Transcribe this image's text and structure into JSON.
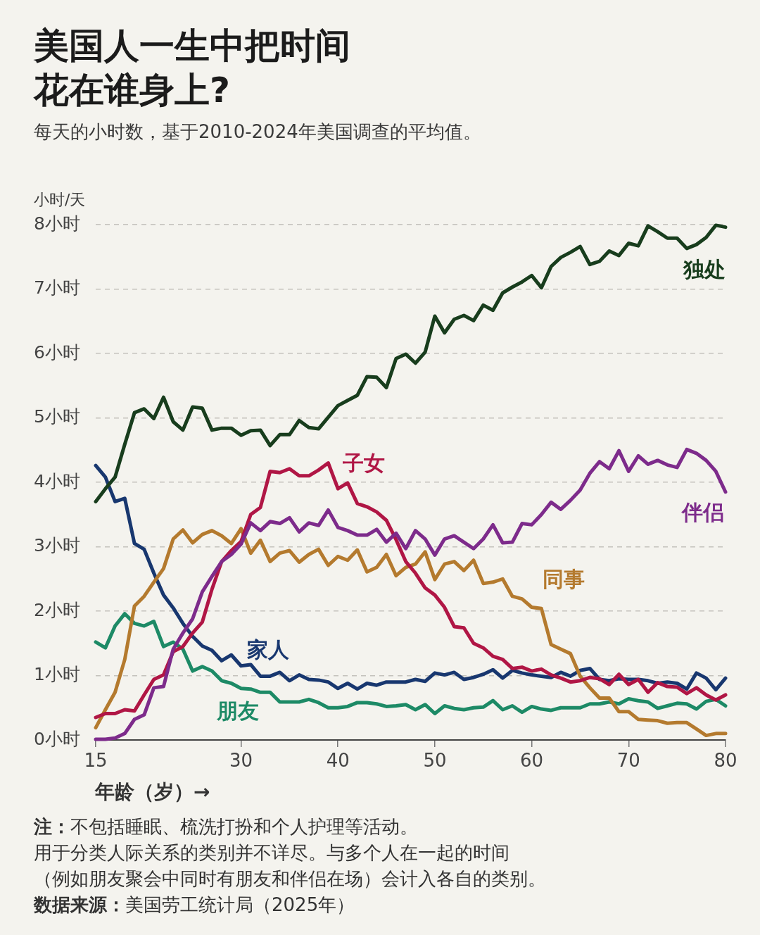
{
  "chart_data": {
    "type": "line",
    "title": "美国人一生中把时间花在谁身上?",
    "subtitle": "每天的小时数，基于2010-2024年美国调查的平均值。",
    "ylabel": "小时/天",
    "xlabel": "年龄（岁）→",
    "annotations": [
      "注：不包括睡眠、梳洗打扮和个人护理等活动。",
      "用于分类人际关系的类别并不详尽。与多个人在一起的时间",
      "（例如朋友聚会中同时有朋友和伴侣在场）会计入各自的类别。",
      "数据来源：美国劳工统计局（2025年）"
    ],
    "x": [
      15,
      16,
      17,
      18,
      19,
      20,
      21,
      22,
      23,
      24,
      25,
      26,
      27,
      28,
      29,
      30,
      31,
      32,
      33,
      34,
      35,
      36,
      37,
      38,
      39,
      40,
      41,
      42,
      43,
      44,
      45,
      46,
      47,
      48,
      49,
      50,
      51,
      52,
      53,
      54,
      55,
      56,
      57,
      58,
      59,
      60,
      61,
      62,
      63,
      64,
      65,
      66,
      67,
      68,
      69,
      70,
      71,
      72,
      73,
      74,
      75,
      76,
      77,
      78,
      79,
      80
    ],
    "series": [
      {
        "name": "独处",
        "color": "#183d1d",
        "values": [
          3.7,
          3.9,
          4.08,
          4.59,
          5.08,
          5.14,
          4.99,
          5.32,
          4.94,
          4.81,
          5.17,
          5.15,
          4.81,
          4.84,
          4.84,
          4.73,
          4.8,
          4.81,
          4.57,
          4.74,
          4.74,
          4.96,
          4.85,
          4.83,
          5.01,
          5.19,
          5.27,
          5.35,
          5.64,
          5.63,
          5.47,
          5.92,
          5.99,
          5.85,
          6.02,
          6.58,
          6.32,
          6.53,
          6.59,
          6.51,
          6.75,
          6.67,
          6.94,
          7.03,
          7.11,
          7.21,
          7.02,
          7.35,
          7.49,
          7.57,
          7.66,
          7.38,
          7.43,
          7.59,
          7.52,
          7.71,
          7.67,
          7.98,
          7.89,
          7.79,
          7.79,
          7.63,
          7.69,
          7.8,
          7.99,
          7.96
        ]
      },
      {
        "name": "伴侣",
        "color": "#7d2b8b",
        "values": [
          0.01,
          0.01,
          0.03,
          0.1,
          0.32,
          0.39,
          0.81,
          0.83,
          1.41,
          1.66,
          1.88,
          2.3,
          2.54,
          2.77,
          2.88,
          3.04,
          3.37,
          3.25,
          3.39,
          3.36,
          3.45,
          3.23,
          3.37,
          3.33,
          3.57,
          3.3,
          3.25,
          3.18,
          3.18,
          3.27,
          3.07,
          3.21,
          2.97,
          3.25,
          3.12,
          2.87,
          3.12,
          3.17,
          3.07,
          2.97,
          3.12,
          3.34,
          3.06,
          3.07,
          3.36,
          3.34,
          3.5,
          3.69,
          3.58,
          3.72,
          3.88,
          4.14,
          4.32,
          4.21,
          4.49,
          4.17,
          4.41,
          4.28,
          4.34,
          4.27,
          4.23,
          4.51,
          4.45,
          4.34,
          4.17,
          3.85
        ]
      },
      {
        "name": "子女",
        "color": "#b01645",
        "values": [
          0.35,
          0.41,
          0.41,
          0.47,
          0.45,
          0.7,
          0.94,
          1.01,
          1.37,
          1.45,
          1.66,
          1.83,
          2.34,
          2.77,
          2.94,
          3.08,
          3.5,
          3.61,
          4.17,
          4.15,
          4.21,
          4.1,
          4.1,
          4.19,
          4.3,
          3.9,
          3.99,
          3.67,
          3.62,
          3.54,
          3.41,
          3.11,
          2.77,
          2.59,
          2.36,
          2.25,
          2.06,
          1.76,
          1.74,
          1.5,
          1.43,
          1.3,
          1.25,
          1.11,
          1.13,
          1.07,
          1.1,
          1.01,
          0.96,
          0.9,
          0.92,
          0.97,
          0.95,
          0.86,
          1.02,
          0.86,
          0.94,
          0.74,
          0.89,
          0.83,
          0.82,
          0.72,
          0.81,
          0.7,
          0.62,
          0.7
        ]
      },
      {
        "name": "同事",
        "color": "#b47a2e",
        "values": [
          0.19,
          0.47,
          0.74,
          1.25,
          2.08,
          2.23,
          2.45,
          2.66,
          3.12,
          3.26,
          3.06,
          3.19,
          3.25,
          3.17,
          3.05,
          3.28,
          2.9,
          3.1,
          2.77,
          2.9,
          2.94,
          2.76,
          2.88,
          2.96,
          2.71,
          2.85,
          2.79,
          2.95,
          2.61,
          2.68,
          2.88,
          2.55,
          2.68,
          2.73,
          2.92,
          2.49,
          2.73,
          2.77,
          2.63,
          2.79,
          2.43,
          2.45,
          2.5,
          2.23,
          2.19,
          2.06,
          2.04,
          1.48,
          1.41,
          1.34,
          0.99,
          0.81,
          0.65,
          0.65,
          0.44,
          0.44,
          0.32,
          0.31,
          0.3,
          0.26,
          0.27,
          0.27,
          0.17,
          0.07,
          0.1,
          0.1
        ]
      },
      {
        "name": "家人",
        "color": "#18376f",
        "values": [
          4.26,
          4.08,
          3.7,
          3.75,
          3.05,
          2.96,
          2.59,
          2.25,
          2.05,
          1.81,
          1.61,
          1.46,
          1.39,
          1.23,
          1.32,
          1.15,
          1.17,
          0.99,
          0.99,
          1.05,
          0.92,
          1.01,
          0.94,
          0.93,
          0.9,
          0.8,
          0.88,
          0.79,
          0.88,
          0.85,
          0.9,
          0.9,
          0.9,
          0.94,
          0.91,
          1.04,
          1.01,
          1.05,
          0.94,
          0.97,
          1.02,
          1.09,
          0.96,
          1.08,
          1.04,
          1.01,
          0.99,
          0.97,
          1.05,
          0.99,
          1.08,
          1.11,
          0.94,
          0.92,
          0.95,
          0.94,
          0.94,
          0.92,
          0.88,
          0.9,
          0.88,
          0.79,
          1.04,
          0.96,
          0.78,
          0.96
        ]
      },
      {
        "name": "朋友",
        "color": "#1d8a66",
        "values": [
          1.52,
          1.43,
          1.77,
          1.96,
          1.81,
          1.77,
          1.84,
          1.45,
          1.52,
          1.41,
          1.07,
          1.14,
          1.07,
          0.92,
          0.88,
          0.8,
          0.79,
          0.74,
          0.74,
          0.59,
          0.59,
          0.59,
          0.63,
          0.58,
          0.5,
          0.5,
          0.52,
          0.58,
          0.58,
          0.56,
          0.52,
          0.53,
          0.55,
          0.47,
          0.55,
          0.41,
          0.53,
          0.49,
          0.47,
          0.5,
          0.51,
          0.61,
          0.47,
          0.53,
          0.43,
          0.52,
          0.48,
          0.46,
          0.5,
          0.5,
          0.5,
          0.56,
          0.56,
          0.59,
          0.56,
          0.64,
          0.61,
          0.59,
          0.49,
          0.53,
          0.57,
          0.56,
          0.48,
          0.6,
          0.63,
          0.53
        ]
      }
    ],
    "xlim": [
      15,
      80
    ],
    "xticks": [
      15,
      30,
      40,
      50,
      60,
      70,
      80
    ],
    "ylim": [
      0,
      8
    ],
    "yticks": [
      {
        "value": 0,
        "label": "0小时"
      },
      {
        "value": 1,
        "label": "1小时"
      },
      {
        "value": 2,
        "label": "2小时"
      },
      {
        "value": 3,
        "label": "3小时"
      },
      {
        "value": 4,
        "label": "4小时"
      },
      {
        "value": 5,
        "label": "5小时"
      },
      {
        "value": 6,
        "label": "6小时"
      },
      {
        "value": 7,
        "label": "7小时"
      },
      {
        "value": 8,
        "label": "8小时"
      }
    ],
    "grid": "y",
    "legend": false,
    "marker": "none",
    "line_style": "solid"
  }
}
